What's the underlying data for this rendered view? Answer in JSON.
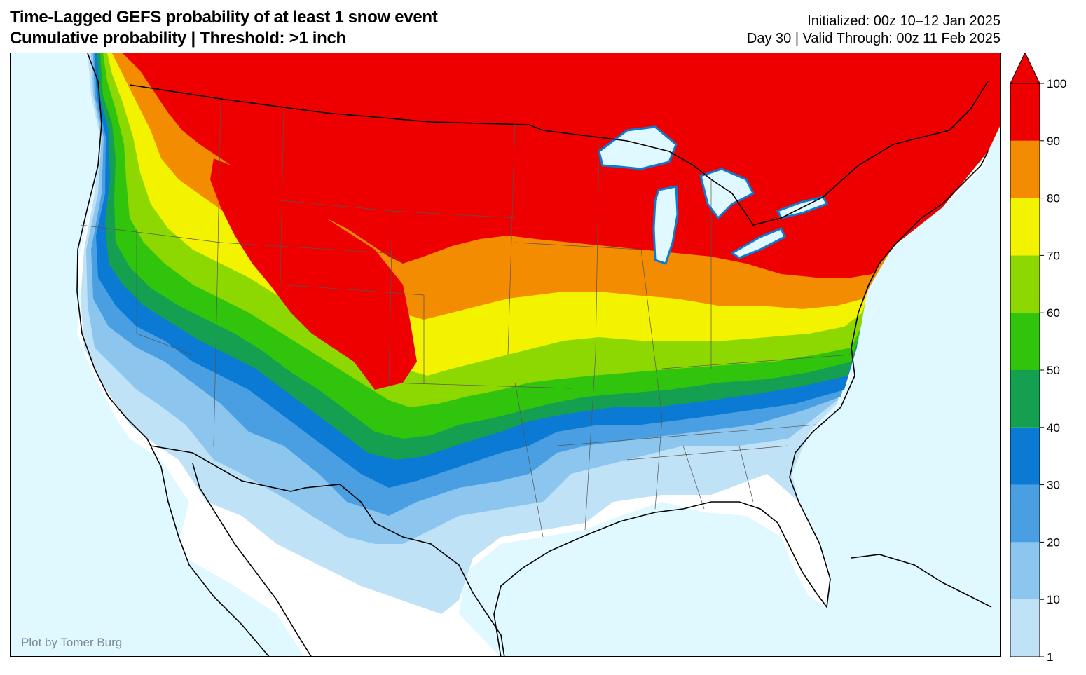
{
  "title": {
    "line1": "Time-Lagged GEFS probability of at least 1 snow event",
    "line2": "Cumulative probability | Threshold: >1 inch"
  },
  "info": {
    "initialized": "Initialized: 00z 10–12 Jan 2025",
    "valid": "Day 30 | Valid Through: 00z 11 Feb 2025"
  },
  "credit": "Plot by Tomer Burg",
  "colorbar": {
    "ticks": [
      "1",
      "10",
      "20",
      "30",
      "40",
      "50",
      "60",
      "70",
      "80",
      "90",
      "100"
    ],
    "bins": [
      {
        "range": "1-10",
        "color": "#c0e2f7"
      },
      {
        "range": "10-20",
        "color": "#8cc6ee"
      },
      {
        "range": "20-30",
        "color": "#4a9fe2"
      },
      {
        "range": "30-40",
        "color": "#0b7ad4"
      },
      {
        "range": "40-50",
        "color": "#14a050"
      },
      {
        "range": "50-60",
        "color": "#31c40c"
      },
      {
        "range": "60-70",
        "color": "#8cd800"
      },
      {
        "range": "70-80",
        "color": "#f3f300"
      },
      {
        "range": "80-90",
        "color": "#f38c00"
      },
      {
        "range": "90-100",
        "color": "#ee0000"
      }
    ],
    "extend": "max"
  },
  "colors": {
    "ocean": "#e0f8ff",
    "land_below_threshold": "#ffffff",
    "boundary": "#000000"
  }
}
